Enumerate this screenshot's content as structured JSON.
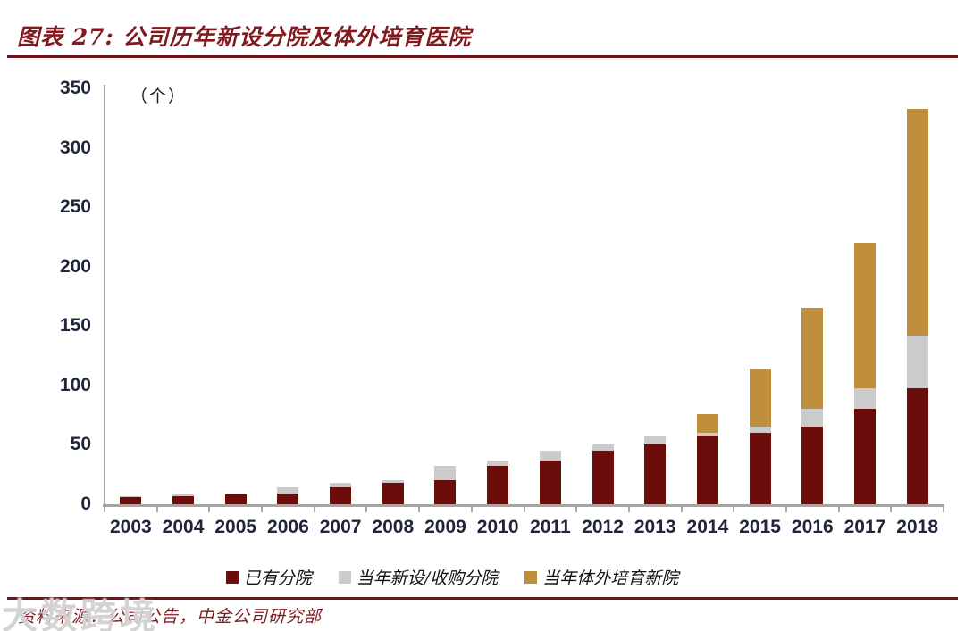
{
  "title": "图表 27: 公司历年新设分院及体外培育医院",
  "unit_label": "（个）",
  "source": "资料来源：公司公告，中金公司研究部",
  "watermark": "大数跨境",
  "colors": {
    "title_red": "#801A1E",
    "rule_red": "#701318",
    "axis_gray": "#A6A6A6",
    "tick_label": "#20263A"
  },
  "chart_data": {
    "type": "bar",
    "stacked": true,
    "title": "公司历年新设分院及体外培育医院",
    "ylabel": "（个）",
    "ylim": [
      0,
      350
    ],
    "yticks": [
      0,
      50,
      100,
      150,
      200,
      250,
      300,
      350
    ],
    "grid": false,
    "legend_position": "bottom",
    "categories": [
      "2003",
      "2004",
      "2005",
      "2006",
      "2007",
      "2008",
      "2009",
      "2010",
      "2011",
      "2012",
      "2013",
      "2014",
      "2015",
      "2016",
      "2017",
      "2018"
    ],
    "series": [
      {
        "name": "已有分院",
        "color": "#6B0D0B",
        "values": [
          6,
          7,
          8,
          9,
          14,
          18,
          20,
          32,
          37,
          45,
          50,
          58,
          60,
          65,
          80,
          98
        ]
      },
      {
        "name": "当年新设/收购分院",
        "color": "#CBCBCB",
        "values": [
          1,
          1,
          1,
          5,
          4,
          2,
          12,
          5,
          8,
          5,
          8,
          2,
          5,
          15,
          18,
          44
        ]
      },
      {
        "name": "当年体外培育新院",
        "color": "#C08F3E",
        "values": [
          0,
          0,
          0,
          0,
          0,
          0,
          0,
          0,
          0,
          0,
          0,
          16,
          49,
          85,
          122,
          191
        ]
      }
    ],
    "totals": [
      7,
      8,
      9,
      14,
      18,
      20,
      32,
      37,
      45,
      50,
      58,
      76,
      114,
      165,
      220,
      333
    ]
  }
}
